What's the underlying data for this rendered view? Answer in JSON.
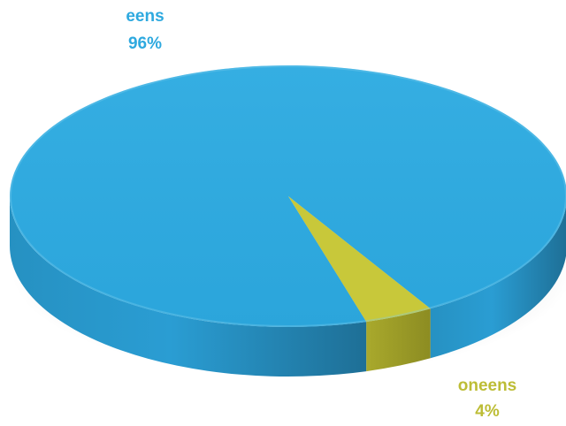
{
  "chart_data": {
    "type": "pie",
    "style": "3d",
    "categories": [
      "eens",
      "oneens"
    ],
    "values": [
      96,
      4
    ],
    "data_labels": [
      "96%",
      "4%"
    ],
    "colors": [
      "#2EA9DF",
      "#C8C83A"
    ],
    "legend": "none"
  }
}
